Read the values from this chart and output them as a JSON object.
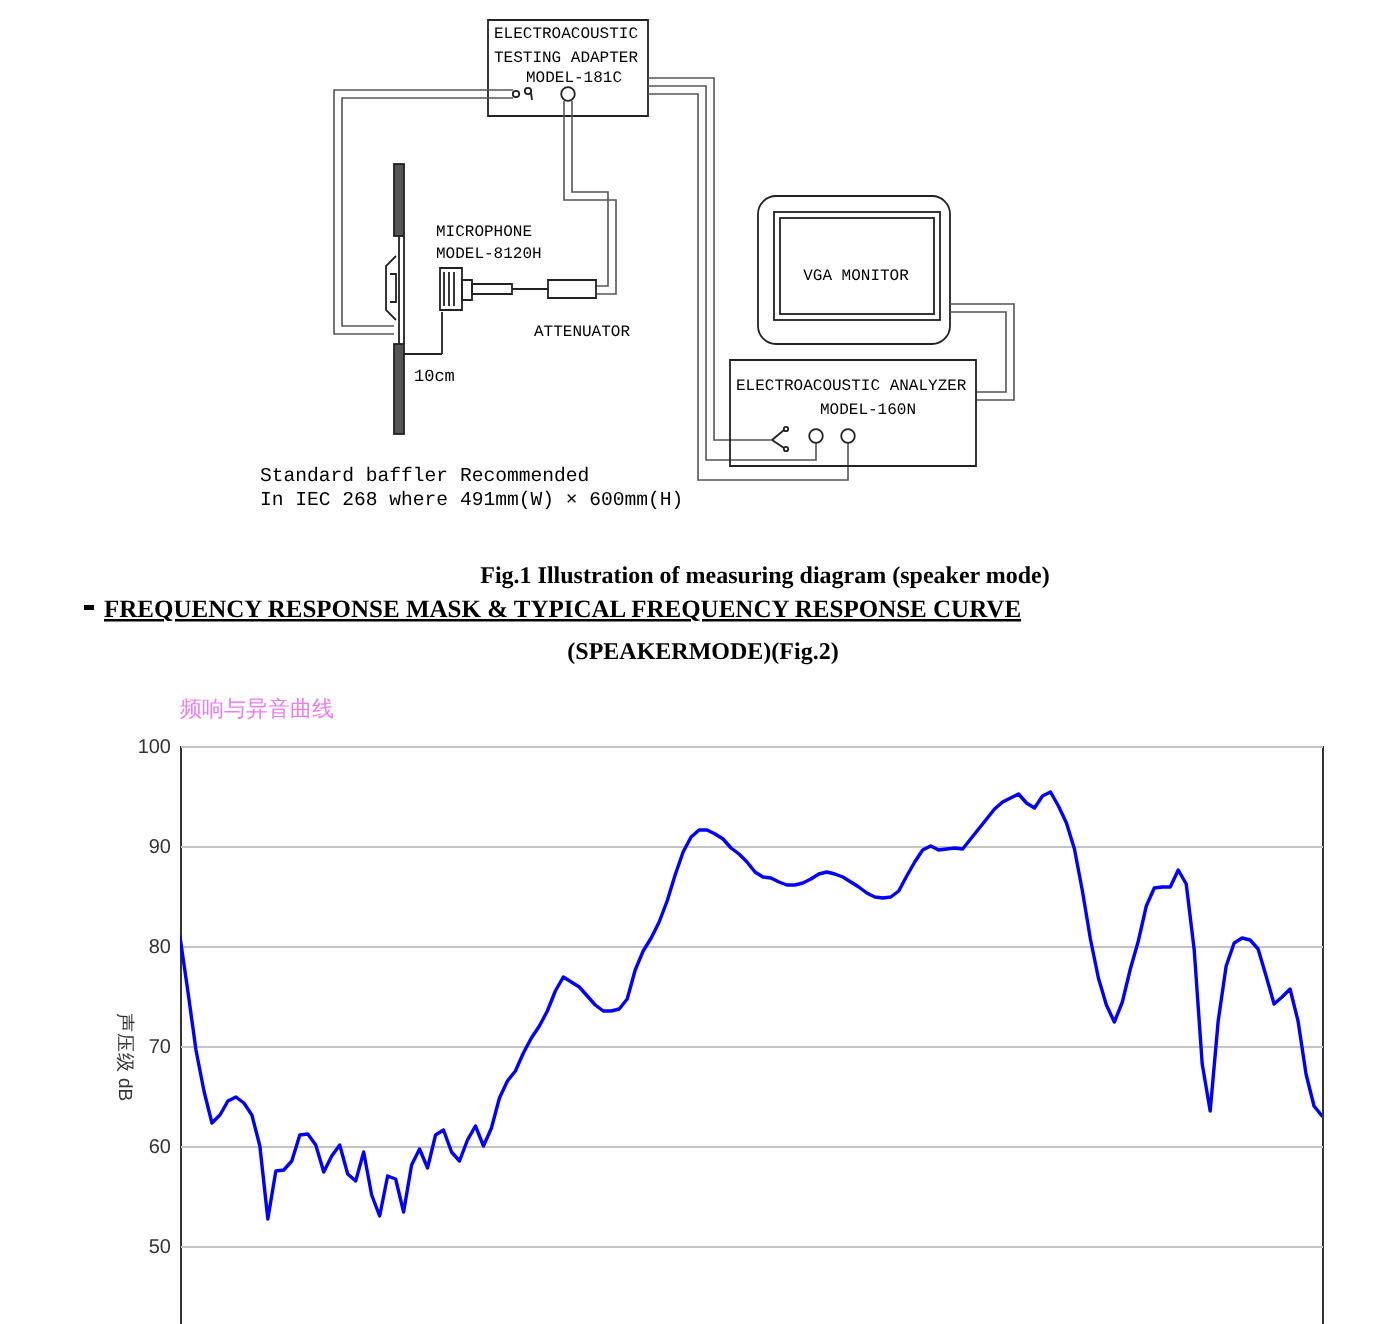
{
  "chart_data": {
    "type": "line",
    "title": "频响与异音曲线",
    "ylabel": "声压级 dB",
    "categories": [
      null,
      null,
      null,
      null,
      null,
      null,
      null,
      null,
      null,
      null,
      null,
      null,
      null,
      null,
      null,
      null,
      null,
      null,
      null,
      null,
      null,
      null,
      null,
      null,
      null,
      null,
      null,
      null,
      null,
      null,
      null,
      null,
      null,
      null,
      null,
      null,
      null,
      null,
      null,
      null,
      null,
      null,
      null,
      null,
      null,
      null,
      null,
      null,
      null,
      null,
      null,
      null,
      null,
      null,
      null,
      null,
      null,
      null,
      null,
      null,
      null,
      null,
      null,
      null,
      null,
      null,
      null,
      null,
      null,
      null,
      null,
      null,
      null,
      null,
      null,
      null,
      null,
      null,
      null,
      null,
      null,
      null,
      null,
      null,
      null,
      null,
      null,
      null,
      null,
      null,
      null,
      null,
      null,
      null,
      null,
      null,
      null,
      null,
      null,
      null,
      null,
      null,
      null,
      null,
      null,
      null,
      null,
      null,
      null,
      null,
      null,
      null,
      null,
      null,
      null,
      null,
      null,
      null,
      null,
      null,
      null,
      null,
      null,
      null,
      null,
      null,
      null,
      null,
      null,
      null,
      null,
      null,
      null,
      null,
      null,
      null,
      null,
      null,
      null,
      null,
      null,
      null,
      null,
      null
    ],
    "values": [
      80.9,
      75.4,
      69.6,
      65.5,
      62.3,
      63.1,
      64.5,
      64.9,
      64.3,
      63.1,
      60.0,
      52.7,
      57.5,
      57.6,
      58.5,
      61.1,
      61.2,
      60.1,
      57.4,
      59.0,
      60.1,
      57.2,
      56.5,
      59.4,
      55.1,
      53.0,
      57.0,
      56.7,
      53.4,
      58.1,
      59.7,
      57.8,
      61.1,
      61.6,
      59.4,
      58.5,
      60.6,
      62.0,
      60.0,
      61.8,
      64.8,
      66.5,
      67.5,
      69.3,
      70.8,
      72.0,
      73.5,
      75.5,
      76.9,
      76.4,
      75.9,
      75.0,
      74.1,
      73.5,
      73.5,
      73.7,
      74.7,
      77.6,
      79.5,
      80.8,
      82.4,
      84.5,
      87.1,
      89.4,
      90.9,
      91.6,
      91.6,
      91.2,
      90.7,
      89.8,
      89.2,
      88.4,
      87.4,
      86.9,
      86.8,
      86.4,
      86.1,
      86.1,
      86.3,
      86.7,
      87.2,
      87.4,
      87.2,
      86.9,
      86.4,
      85.9,
      85.3,
      84.9,
      84.8,
      84.9,
      85.5,
      87.0,
      88.4,
      89.6,
      90.0,
      89.6,
      89.7,
      89.8,
      89.7,
      90.7,
      91.7,
      92.7,
      93.7,
      94.4,
      94.8,
      95.2,
      94.3,
      93.8,
      95.0,
      95.4,
      94.0,
      92.3,
      89.7,
      85.5,
      80.7,
      76.8,
      74.1,
      72.4,
      74.4,
      77.7,
      80.5,
      84.0,
      85.8,
      85.9,
      85.9,
      87.6,
      86.2,
      79.6,
      68.2,
      63.5,
      72.5,
      78.0,
      80.3,
      80.8,
      80.6,
      79.7,
      77.0,
      74.2,
      74.9,
      75.7,
      72.5,
      67.2,
      64.0,
      63.0
    ],
    "color": "#0000ff",
    "ylim": [
      42,
      100
    ],
    "yticks": [
      50,
      60,
      70,
      80,
      90,
      100
    ],
    "grid": "y",
    "tick_labels": "y",
    "annotations": [
      "ELECTROACOUSTIC",
      "TESTING ADAPTER",
      "MODEL-181C",
      "MICROPHONE",
      "MODEL-8120H",
      "VGA MONITOR",
      "ATTENUATOR",
      "10cm",
      "ELECTROACOUSTIC ANALYZER",
      "MODEL-160N",
      "Standard baffler Recommended",
      "In IEC 268 where 491mm(W) × 600mm(H)",
      "Fig.1 Illustration of measuring diagram (speaker mode)",
      "FREQUENCY RESPONSE MASK & TYPICAL FREQUENCY RESPONSE CURVE",
      "(SPEAKERMODE)(Fig.2)"
    ]
  }
}
